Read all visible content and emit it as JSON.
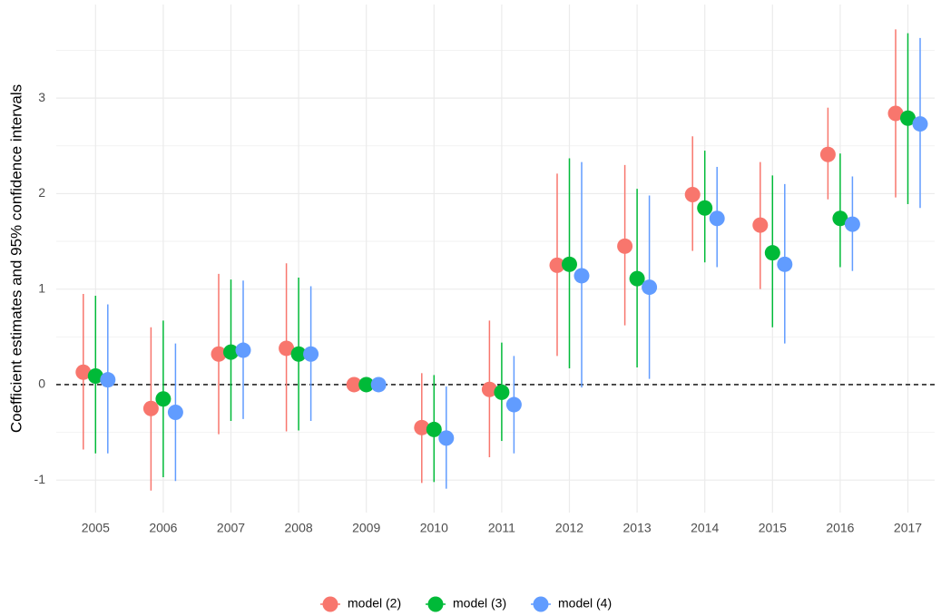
{
  "chart_data": {
    "type": "errorpoint",
    "y_label": "Coefficient estimates and 95% confidence intervals",
    "categories": [
      "2005",
      "2006",
      "2007",
      "2008",
      "2009",
      "2010",
      "2011",
      "2012",
      "2013",
      "2014",
      "2015",
      "2016",
      "2017"
    ],
    "series": [
      {
        "name": "model (2)",
        "color": "#F8766D",
        "values": [
          0.13,
          -0.25,
          0.32,
          0.38,
          0,
          -0.45,
          -0.05,
          1.25,
          1.45,
          1.99,
          1.67,
          2.41,
          2.84
        ],
        "lower": [
          -0.68,
          -1.11,
          -0.52,
          -0.49,
          0,
          -1.03,
          -0.76,
          0.3,
          0.62,
          1.4,
          1.0,
          1.94,
          1.96
        ],
        "upper": [
          0.95,
          0.6,
          1.16,
          1.27,
          0,
          0.12,
          0.67,
          2.21,
          2.3,
          2.6,
          2.33,
          2.9,
          3.72
        ]
      },
      {
        "name": "model (3)",
        "color": "#00BA38",
        "values": [
          0.09,
          -0.15,
          0.34,
          0.32,
          0,
          -0.47,
          -0.08,
          1.26,
          1.11,
          1.85,
          1.38,
          1.74,
          2.79
        ],
        "lower": [
          -0.72,
          -0.97,
          -0.38,
          -0.48,
          0,
          -1.02,
          -0.59,
          0.17,
          0.18,
          1.28,
          0.6,
          1.23,
          1.89
        ],
        "upper": [
          0.93,
          0.67,
          1.1,
          1.12,
          0,
          0.1,
          0.44,
          2.37,
          2.05,
          2.45,
          2.19,
          2.42,
          3.68
        ]
      },
      {
        "name": "model (4)",
        "color": "#619CFF",
        "values": [
          0.05,
          -0.29,
          0.36,
          0.32,
          0,
          -0.56,
          -0.21,
          1.14,
          1.02,
          1.74,
          1.26,
          1.68,
          2.73
        ],
        "lower": [
          -0.72,
          -1.01,
          -0.36,
          -0.38,
          0,
          -1.09,
          -0.72,
          -0.03,
          0.06,
          1.23,
          0.43,
          1.19,
          1.85
        ],
        "upper": [
          0.84,
          0.43,
          1.09,
          1.03,
          0,
          -0.02,
          0.3,
          2.33,
          1.98,
          2.28,
          2.1,
          2.18,
          3.63
        ]
      }
    ],
    "ylim": [
      -1.34,
      3.98
    ],
    "yticks": [
      -1,
      0,
      1,
      2,
      3
    ],
    "hline": 0,
    "grid": true,
    "legend": "bottom"
  }
}
